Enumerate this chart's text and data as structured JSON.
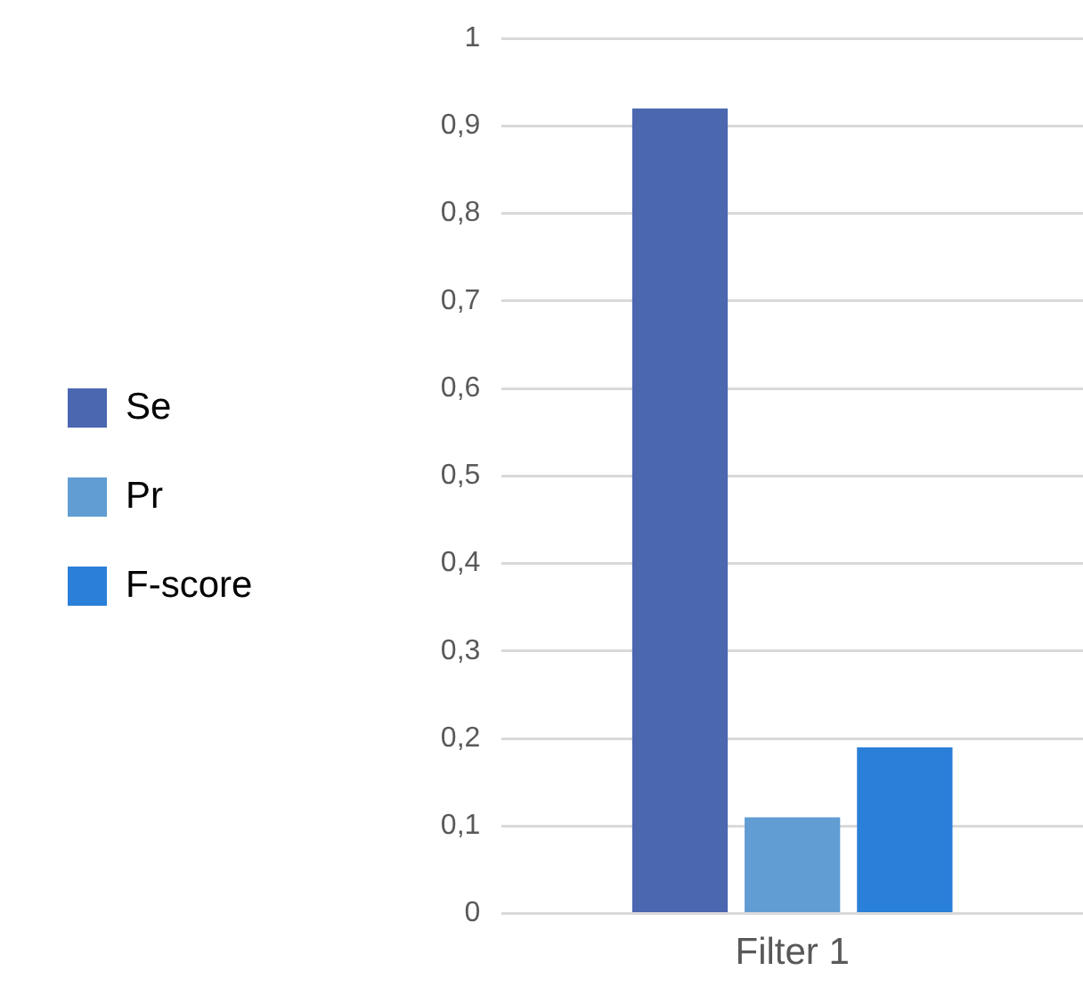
{
  "chart_data": {
    "type": "bar",
    "categories": [
      "Filter 1"
    ],
    "series": [
      {
        "name": "Se",
        "color": "#4a67b0",
        "values": [
          0.92
        ]
      },
      {
        "name": "Pr",
        "color": "#619dd2",
        "values": [
          0.11
        ]
      },
      {
        "name": "F-score",
        "color": "#2a7fd8",
        "values": [
          0.19
        ]
      }
    ],
    "ylim": [
      0,
      1
    ],
    "yticks": [
      {
        "value": 0,
        "label": "0"
      },
      {
        "value": 0.1,
        "label": "0,1"
      },
      {
        "value": 0.2,
        "label": "0,2"
      },
      {
        "value": 0.3,
        "label": "0,3"
      },
      {
        "value": 0.4,
        "label": "0,4"
      },
      {
        "value": 0.5,
        "label": "0,5"
      },
      {
        "value": 0.6,
        "label": "0,6"
      },
      {
        "value": 0.7,
        "label": "0,7"
      },
      {
        "value": 0.8,
        "label": "0,8"
      },
      {
        "value": 0.9,
        "label": "0,9"
      },
      {
        "value": 1,
        "label": "1"
      }
    ],
    "grid": "y",
    "legend": "left"
  }
}
